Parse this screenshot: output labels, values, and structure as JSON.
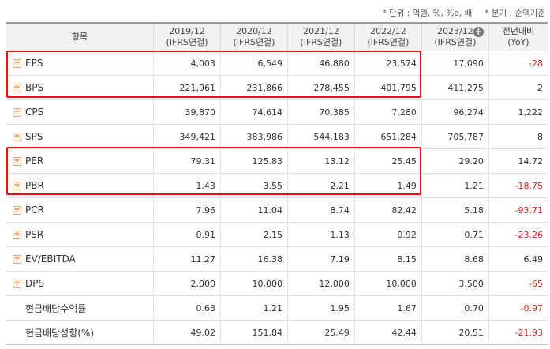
{
  "notes": {
    "unit": "* 단위 : 억원, %, %p, 배",
    "period": "* 분기 : 순액기준"
  },
  "header": {
    "item": "항목",
    "years": [
      {
        "line1": "2019/12",
        "line2": "(IFRS연결)"
      },
      {
        "line1": "2020/12",
        "line2": "(IFRS연결)"
      },
      {
        "line1": "2021/12",
        "line2": "(IFRS연결)"
      },
      {
        "line1": "2022/12",
        "line2": "(IFRS연결)"
      },
      {
        "line1": "2023/12",
        "line2": "(IFRS연결)"
      }
    ],
    "yoy_line1": "전년대비",
    "yoy_line2": "(YoY)",
    "expand_icon": "plus-circle-icon"
  },
  "rows": [
    {
      "label": "EPS",
      "expand": true,
      "values": [
        "4,003",
        "6,549",
        "46,880",
        "23,574",
        "17,090"
      ],
      "yoy": "-28",
      "neg": true
    },
    {
      "label": "BPS",
      "expand": true,
      "values": [
        "221,961",
        "231,866",
        "278,455",
        "401,795",
        "411,275"
      ],
      "yoy": "2",
      "neg": false
    },
    {
      "label": "CPS",
      "expand": true,
      "values": [
        "39,870",
        "74,614",
        "70,385",
        "7,280",
        "96,274"
      ],
      "yoy": "1,222",
      "neg": false
    },
    {
      "label": "SPS",
      "expand": true,
      "values": [
        "349,421",
        "383,986",
        "544,183",
        "651,284",
        "705,787"
      ],
      "yoy": "8",
      "neg": false
    },
    {
      "label": "PER",
      "expand": true,
      "values": [
        "79.31",
        "125.83",
        "13.12",
        "25.45",
        "29.20"
      ],
      "yoy": "14.72",
      "neg": false
    },
    {
      "label": "PBR",
      "expand": true,
      "values": [
        "1.43",
        "3.55",
        "2.21",
        "1.49",
        "1.21"
      ],
      "yoy": "-18.75",
      "neg": true
    },
    {
      "label": "PCR",
      "expand": true,
      "values": [
        "7.96",
        "11.04",
        "8.74",
        "82.42",
        "5.18"
      ],
      "yoy": "-93.71",
      "neg": true
    },
    {
      "label": "PSR",
      "expand": true,
      "values": [
        "0.91",
        "2.15",
        "1.13",
        "0.92",
        "0.71"
      ],
      "yoy": "-23.26",
      "neg": true
    },
    {
      "label": "EV/EBITDA",
      "expand": true,
      "values": [
        "11.27",
        "16.38",
        "7.19",
        "8.15",
        "8.68"
      ],
      "yoy": "6.49",
      "neg": false
    },
    {
      "label": "DPS",
      "expand": true,
      "values": [
        "2,000",
        "10,000",
        "12,000",
        "10,000",
        "3,500"
      ],
      "yoy": "-65",
      "neg": true
    },
    {
      "label": "현금배당수익률",
      "expand": false,
      "values": [
        "0.63",
        "1.21",
        "1.95",
        "1.67",
        "0.70"
      ],
      "yoy": "-0.97",
      "neg": true
    },
    {
      "label": "현금배당성향(%)",
      "expand": false,
      "values": [
        "49.02",
        "151.84",
        "25.49",
        "42.44",
        "20.51"
      ],
      "yoy": "-21.93",
      "neg": true
    }
  ],
  "colors": {
    "highlight": "#e8131a",
    "negative": "#e0251b",
    "header_bg": "#f2f2f2"
  }
}
